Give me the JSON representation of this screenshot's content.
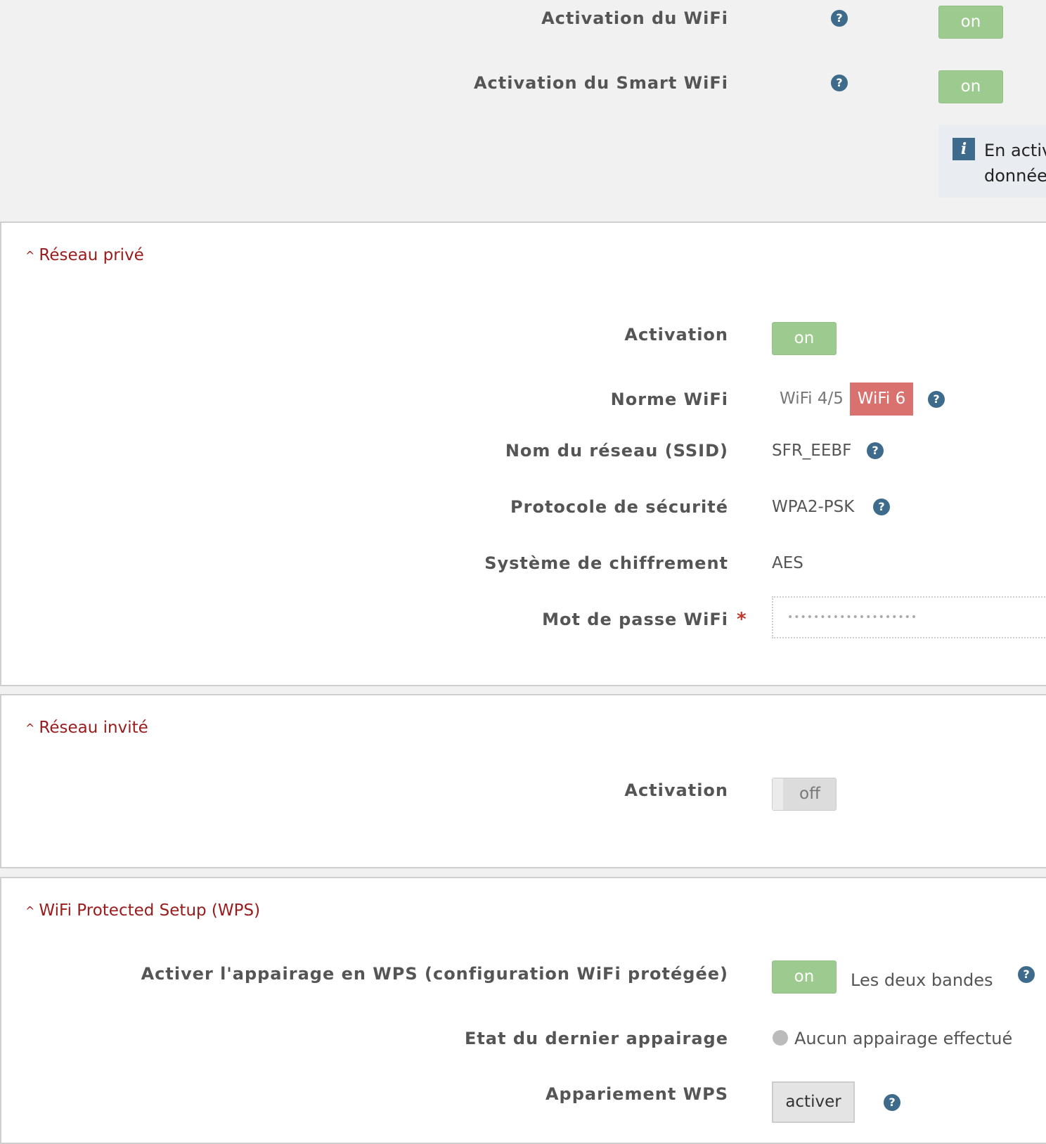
{
  "top": {
    "wifi_activation": {
      "label": "Activation du WiFi",
      "state": "on"
    },
    "smart_wifi_activation": {
      "label": "Activation du Smart WiFi",
      "state": "on"
    },
    "info": {
      "line1": "En activ",
      "line2": "donnée"
    }
  },
  "private_network": {
    "title": "Réseau privé",
    "activation": {
      "label": "Activation",
      "state": "on"
    },
    "norme": {
      "label": "Norme WiFi",
      "options": [
        "WiFi 4/5",
        "WiFi 6"
      ],
      "selected": "WiFi 6"
    },
    "ssid": {
      "label": "Nom du réseau (SSID)",
      "value": "SFR_EEBF"
    },
    "protocol": {
      "label": "Protocole de sécurité",
      "value": "WPA2-PSK"
    },
    "cipher": {
      "label": "Système de chiffrement",
      "value": "AES"
    },
    "password": {
      "label": "Mot de passe WiFi",
      "required": "*",
      "value": "••••••••••••••••••••"
    }
  },
  "guest_network": {
    "title": "Réseau invité",
    "activation": {
      "label": "Activation",
      "state": "off"
    }
  },
  "wps": {
    "title": "WiFi Protected Setup (WPS)",
    "pairing": {
      "label": "Activer l'appairage en WPS (configuration WiFi protégée)",
      "state": "on",
      "bands": "Les deux bandes"
    },
    "last_state": {
      "label": "Etat du dernier appairage",
      "value": "Aucun appairage effectué"
    },
    "wps_pairing": {
      "label": "Appariement WPS",
      "button": "activer"
    }
  },
  "help_glyph": "?",
  "info_glyph": "i",
  "chevron_glyph": "^",
  "colors": {
    "toggle_on": "#9dcb8f",
    "accent_red": "#9a1b1b",
    "selected_option": "#d9716e",
    "help": "#3e6b8c"
  }
}
